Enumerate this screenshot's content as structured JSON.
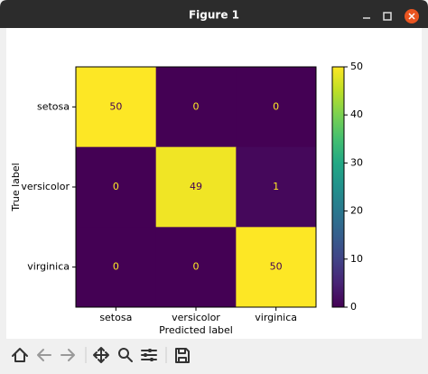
{
  "window": {
    "title": "Figure 1"
  },
  "chart_data": {
    "type": "heatmap",
    "x_categories": [
      "setosa",
      "versicolor",
      "virginica"
    ],
    "y_categories": [
      "setosa",
      "versicolor",
      "virginica"
    ],
    "values": [
      [
        50,
        0,
        0
      ],
      [
        0,
        49,
        1
      ],
      [
        0,
        0,
        50
      ]
    ],
    "xlabel": "Predicted label",
    "ylabel": "True label",
    "colormap": "viridis",
    "colorbar": {
      "lim": [
        0,
        50
      ],
      "ticks": [
        0,
        10,
        20,
        30,
        40,
        50
      ]
    }
  }
}
